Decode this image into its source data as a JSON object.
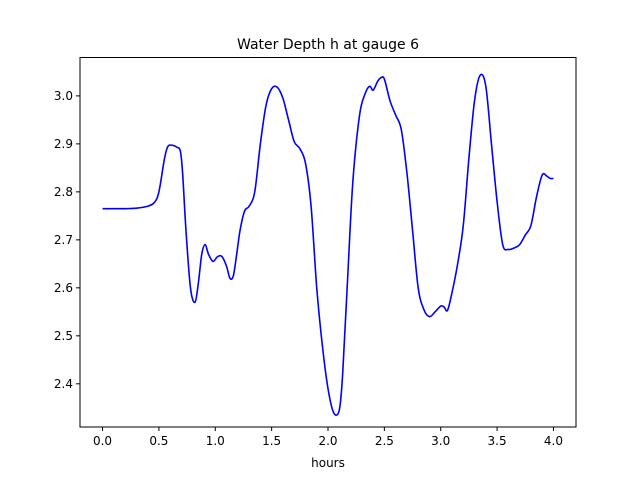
{
  "chart_data": {
    "type": "line",
    "title": "Water Depth h at gauge 6",
    "xlabel": "hours",
    "ylabel": "",
    "xlim": [
      -0.2,
      4.2
    ],
    "ylim": [
      2.31,
      3.08
    ],
    "x_ticks": [
      0.0,
      0.5,
      1.0,
      1.5,
      2.0,
      2.5,
      3.0,
      3.5,
      4.0
    ],
    "x_tick_labels": [
      "0.0",
      "0.5",
      "1.0",
      "1.5",
      "2.0",
      "2.5",
      "3.0",
      "3.5",
      "4.0"
    ],
    "y_ticks": [
      2.4,
      2.5,
      2.6,
      2.7,
      2.8,
      2.9,
      3.0
    ],
    "y_tick_labels": [
      "2.4",
      "2.5",
      "2.6",
      "2.7",
      "2.8",
      "2.9",
      "3.0"
    ],
    "grid": false,
    "series": [
      {
        "color": "#0000ff",
        "x": [
          0.0,
          0.2,
          0.3,
          0.4,
          0.46,
          0.5,
          0.55,
          0.58,
          0.62,
          0.66,
          0.69,
          0.71,
          0.74,
          0.78,
          0.82,
          0.85,
          0.88,
          0.91,
          0.94,
          0.98,
          1.02,
          1.06,
          1.1,
          1.13,
          1.16,
          1.19,
          1.22,
          1.26,
          1.3,
          1.35,
          1.4,
          1.45,
          1.5,
          1.55,
          1.6,
          1.65,
          1.7,
          1.75,
          1.8,
          1.85,
          1.9,
          1.95,
          2.0,
          2.05,
          2.1,
          2.13,
          2.17,
          2.22,
          2.28,
          2.33,
          2.37,
          2.4,
          2.44,
          2.47,
          2.5,
          2.55,
          2.6,
          2.65,
          2.7,
          2.75,
          2.8,
          2.85,
          2.9,
          2.95,
          3.0,
          3.03,
          3.06,
          3.1,
          3.15,
          3.2,
          3.25,
          3.3,
          3.35,
          3.4,
          3.45,
          3.5,
          3.55,
          3.6,
          3.65,
          3.7,
          3.75,
          3.8,
          3.85,
          3.9,
          3.94,
          3.97,
          4.0
        ],
        "y": [
          2.765,
          2.765,
          2.766,
          2.77,
          2.778,
          2.8,
          2.87,
          2.895,
          2.897,
          2.893,
          2.885,
          2.84,
          2.72,
          2.6,
          2.57,
          2.61,
          2.67,
          2.69,
          2.67,
          2.655,
          2.665,
          2.665,
          2.645,
          2.62,
          2.625,
          2.67,
          2.72,
          2.76,
          2.77,
          2.8,
          2.9,
          2.98,
          3.015,
          3.018,
          2.995,
          2.95,
          2.905,
          2.89,
          2.86,
          2.77,
          2.6,
          2.48,
          2.39,
          2.34,
          2.345,
          2.42,
          2.6,
          2.82,
          2.96,
          3.005,
          3.02,
          3.012,
          3.03,
          3.038,
          3.035,
          2.99,
          2.96,
          2.93,
          2.84,
          2.72,
          2.6,
          2.555,
          2.54,
          2.55,
          2.562,
          2.56,
          2.553,
          2.59,
          2.65,
          2.73,
          2.87,
          2.99,
          3.043,
          3.02,
          2.9,
          2.78,
          2.69,
          2.68,
          2.683,
          2.69,
          2.71,
          2.73,
          2.79,
          2.835,
          2.833,
          2.828,
          2.828
        ]
      }
    ]
  }
}
